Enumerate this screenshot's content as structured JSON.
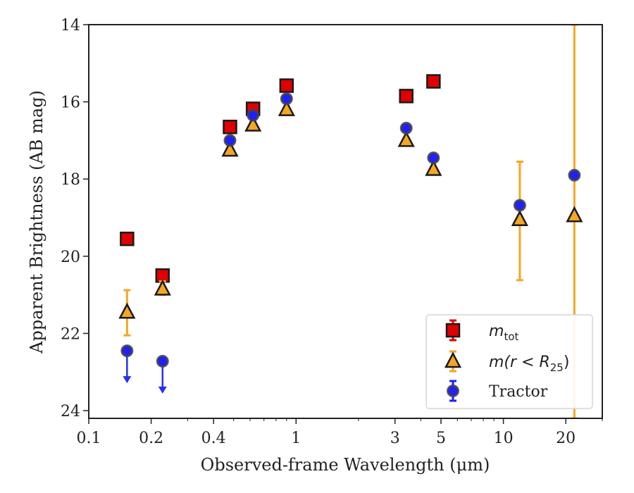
{
  "chart_data": {
    "type": "scatter",
    "title": "",
    "xlabel": "Observed-frame Wavelength (μm)",
    "ylabel": "Apparent Brightness (AB mag)",
    "x_scale": "log",
    "xlim": [
      0.1,
      30
    ],
    "ylim": [
      24.2,
      14
    ],
    "y_inverted": true,
    "grid": false,
    "legend_position": "bottom-right",
    "x_ticks": [
      {
        "value": 0.1,
        "label": "0.1"
      },
      {
        "value": 0.2,
        "label": "0.2"
      },
      {
        "value": 0.4,
        "label": "0.4"
      },
      {
        "value": 1,
        "label": "1"
      },
      {
        "value": 3,
        "label": "3"
      },
      {
        "value": 5,
        "label": "5"
      },
      {
        "value": 10,
        "label": "10"
      },
      {
        "value": 20,
        "label": "20"
      }
    ],
    "x_minor_ticks": [
      0.3,
      0.5,
      0.6,
      0.7,
      0.8,
      0.9,
      2,
      4,
      6,
      7,
      8,
      9,
      30
    ],
    "y_ticks": [
      {
        "value": 14,
        "label": "14"
      },
      {
        "value": 16,
        "label": "16"
      },
      {
        "value": 18,
        "label": "18"
      },
      {
        "value": 20,
        "label": "20"
      },
      {
        "value": 22,
        "label": "22"
      },
      {
        "value": 24,
        "label": "24"
      }
    ],
    "series": [
      {
        "name": "m_tot",
        "legend_main": "m",
        "legend_sub": "tot",
        "marker": "square",
        "color": "#e00000",
        "points": [
          {
            "x": 0.153,
            "y": 19.55
          },
          {
            "x": 0.227,
            "y": 20.5
          },
          {
            "x": 0.48,
            "y": 16.65
          },
          {
            "x": 0.62,
            "y": 16.18
          },
          {
            "x": 0.9,
            "y": 15.58
          },
          {
            "x": 3.4,
            "y": 15.85
          },
          {
            "x": 4.6,
            "y": 15.47
          }
        ]
      },
      {
        "name": "m(r < R25)",
        "legend_main": "m(r < R",
        "legend_sub": "25",
        "legend_end": ")",
        "marker": "triangle",
        "color": "#f5a623",
        "points": [
          {
            "x": 0.153,
            "y": 21.45,
            "yerr_low": 20.88,
            "yerr_high": 22.05
          },
          {
            "x": 0.227,
            "y": 20.85,
            "yerr_low": 20.65,
            "yerr_high": 21.0
          },
          {
            "x": 0.48,
            "y": 17.25
          },
          {
            "x": 0.62,
            "y": 16.6
          },
          {
            "x": 0.9,
            "y": 16.2
          },
          {
            "x": 3.4,
            "y": 17.0
          },
          {
            "x": 4.6,
            "y": 17.75
          },
          {
            "x": 12.0,
            "y": 19.05,
            "yerr_low": 17.55,
            "yerr_high": 20.62
          },
          {
            "x": 22.0,
            "y": 18.95,
            "yerr_low": 14.0,
            "yerr_high": 24.2
          }
        ]
      },
      {
        "name": "Tractor",
        "legend_main": "Tractor",
        "marker": "circle",
        "color": "#1f1fff",
        "points": [
          {
            "x": 0.153,
            "y": 22.45,
            "upper_limit": true
          },
          {
            "x": 0.227,
            "y": 22.72,
            "upper_limit": true
          },
          {
            "x": 0.48,
            "y": 17.0
          },
          {
            "x": 0.62,
            "y": 16.35
          },
          {
            "x": 0.9,
            "y": 15.92
          },
          {
            "x": 3.4,
            "y": 16.68
          },
          {
            "x": 4.6,
            "y": 17.45
          },
          {
            "x": 12.0,
            "y": 18.68
          },
          {
            "x": 22.0,
            "y": 17.9
          }
        ]
      }
    ]
  }
}
